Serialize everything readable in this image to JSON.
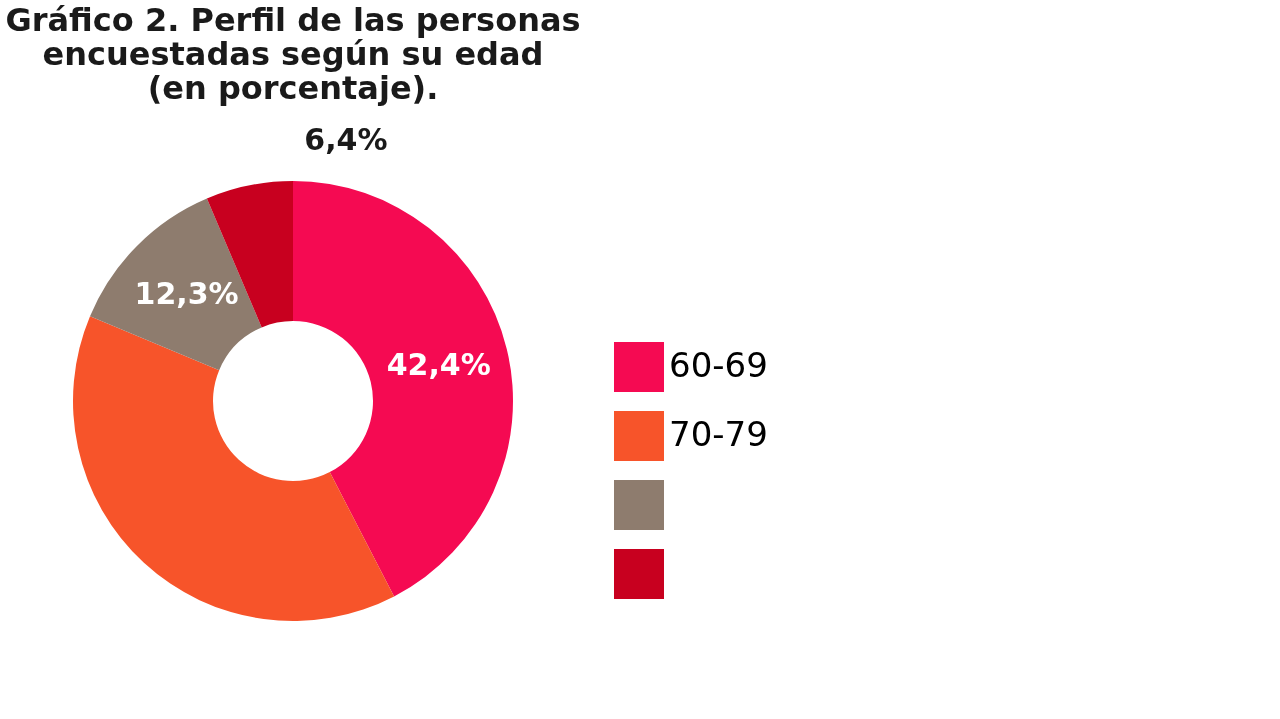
{
  "chart_data": {
    "type": "donut",
    "title": "Gráfico 2. Perfil de las personas\nencuestadas según su edad\n(en porcentaje).",
    "categories": [
      "60-69",
      "70-79",
      null,
      null
    ],
    "values": [
      42.4,
      38.9,
      12.3,
      6.4
    ],
    "value_labels": [
      "42,4%",
      null,
      "12,3%",
      "6,4%"
    ],
    "colors": [
      "#f50a52",
      "#f7542a",
      "#8e7c6e",
      "#c8001f"
    ],
    "legend": "bottom right"
  }
}
